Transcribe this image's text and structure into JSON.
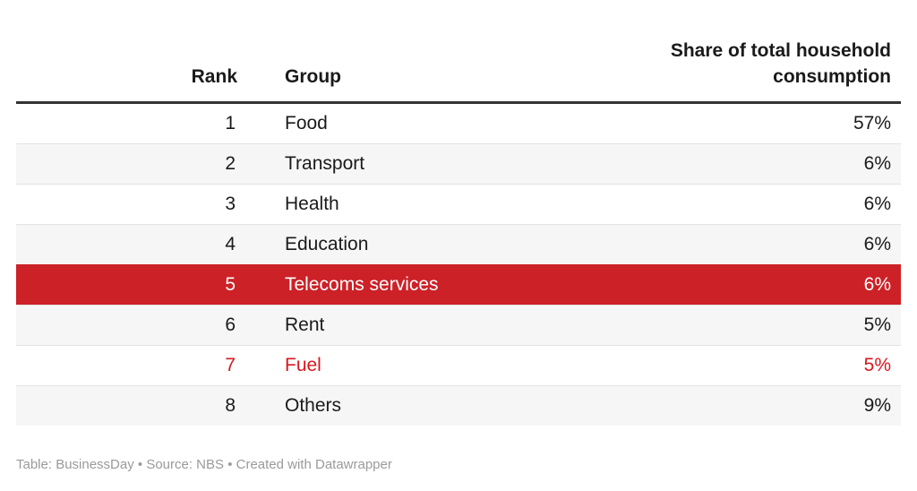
{
  "chart_data": {
    "type": "table",
    "title": "Share of total household consumption",
    "columns": [
      {
        "key": "rank",
        "label": "Rank",
        "align": "right"
      },
      {
        "key": "group",
        "label": "Group",
        "align": "left"
      },
      {
        "key": "share",
        "label": "Share of total household consumption",
        "align": "right"
      }
    ],
    "rows": [
      {
        "rank": "1",
        "group": "Food",
        "share": "57%",
        "style": "plain"
      },
      {
        "rank": "2",
        "group": "Transport",
        "share": "6%",
        "style": "striped"
      },
      {
        "rank": "3",
        "group": "Health",
        "share": "6%",
        "style": "plain"
      },
      {
        "rank": "4",
        "group": "Education",
        "share": "6%",
        "style": "striped"
      },
      {
        "rank": "5",
        "group": "Telecoms services",
        "share": "6%",
        "style": "highlight"
      },
      {
        "rank": "6",
        "group": "Rent",
        "share": "5%",
        "style": "striped"
      },
      {
        "rank": "7",
        "group": "Fuel",
        "share": "5%",
        "style": "accent-text"
      },
      {
        "rank": "8",
        "group": "Others",
        "share": "9%",
        "style": "striped"
      }
    ],
    "highlighted_row": "Telecoms services",
    "accent_text_row": "Fuel",
    "values_unit": "%",
    "layout": {
      "zebra_striping": true,
      "header_rule": true,
      "gridlines": "horizontal"
    }
  },
  "footer": {
    "text": "Table: BusinessDay • Source: NBS • Created with Datawrapper"
  },
  "colors": {
    "background": "#ffffff",
    "text": "#1a1a1a",
    "header_rule": "#333333",
    "row_stripe": "#f6f6f6",
    "row_separator": "#e3e3e3",
    "highlight_bg": "#cc2127",
    "highlight_text": "#ffffff",
    "accent_text": "#d6191f",
    "footer_text": "#9a9a9a"
  }
}
